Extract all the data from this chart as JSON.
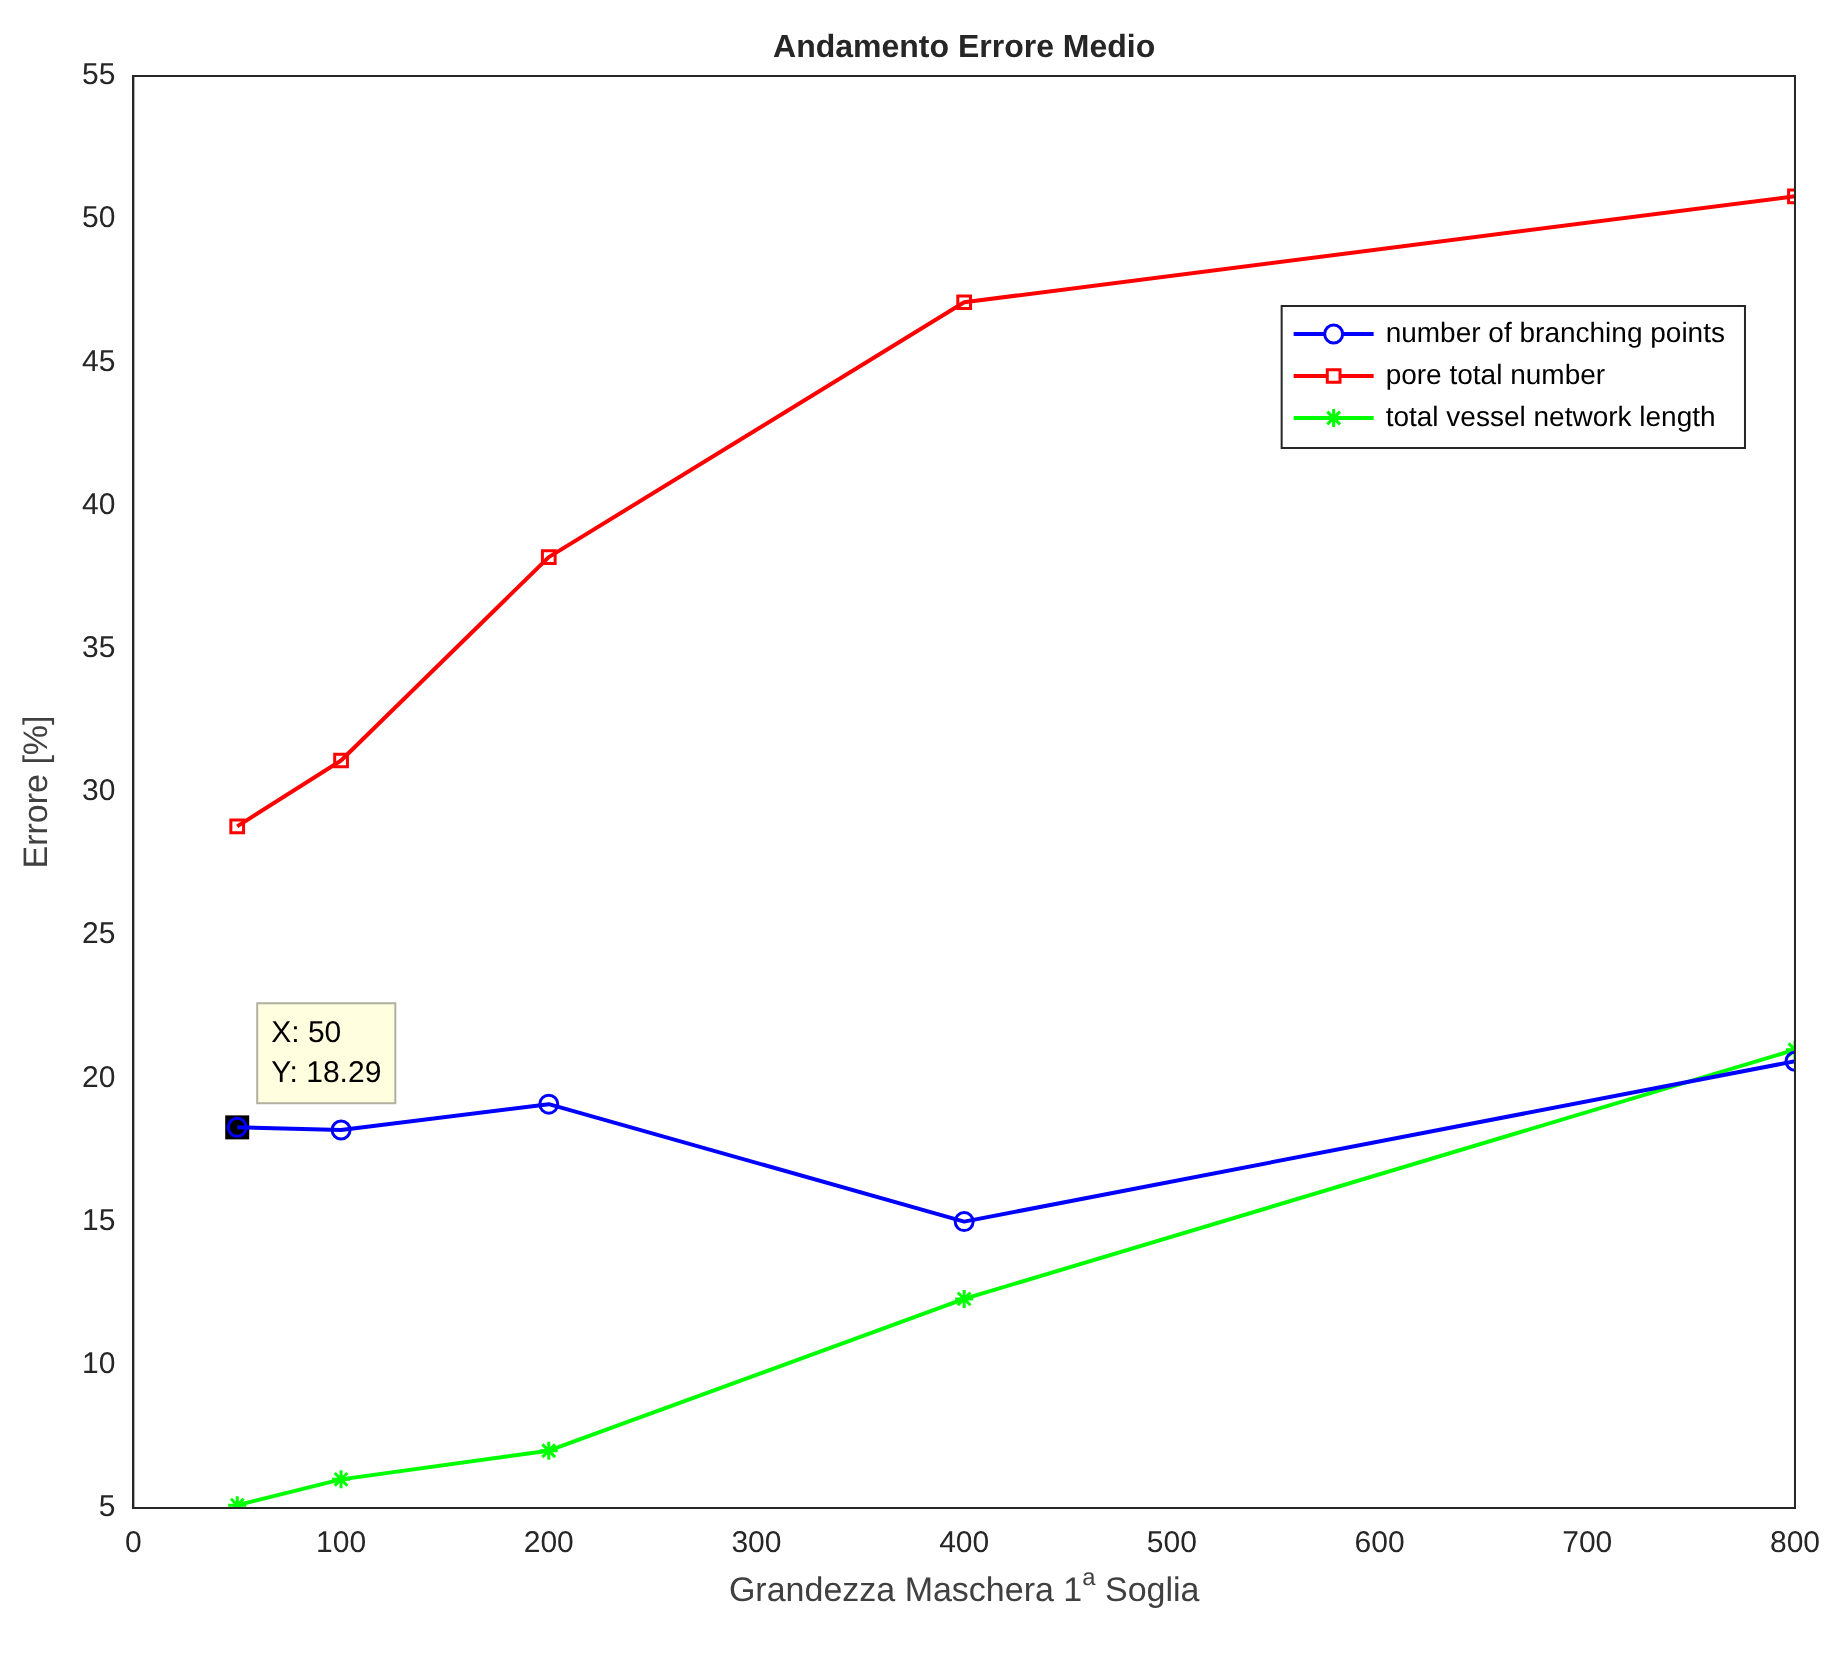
{
  "chart_data": {
    "type": "line",
    "title": "Andamento Errore Medio",
    "xlabel": "Grandezza Maschera 1$^{a}$ Soglia",
    "ylabel": "Errore [%]",
    "x": [
      50,
      100,
      200,
      400,
      800
    ],
    "series": [
      {
        "name": "number of branching points",
        "color": "#0000ff",
        "marker": "circle",
        "values": [
          18.29,
          18.2,
          19.1,
          15.0,
          20.6
        ]
      },
      {
        "name": "pore total number",
        "color": "#ff0000",
        "marker": "square",
        "values": [
          28.8,
          31.1,
          38.2,
          47.1,
          50.8
        ]
      },
      {
        "name": "total vessel network length",
        "color": "#00ff00",
        "marker": "cross",
        "values": [
          5.1,
          6.0,
          7.0,
          12.3,
          21.0
        ]
      }
    ],
    "xlim": [
      0,
      800
    ],
    "xticks": [
      0,
      100,
      200,
      300,
      400,
      500,
      600,
      700,
      800
    ],
    "ylim": [
      5,
      55
    ],
    "yticks": [
      5,
      10,
      15,
      20,
      25,
      30,
      35,
      40,
      45,
      50,
      55
    ],
    "grid": false,
    "legend": "top right",
    "line_style": "solid",
    "annotations": [
      {
        "text": "X: 50\nY: 18.29",
        "x": 50,
        "y": 18.29
      }
    ]
  }
}
